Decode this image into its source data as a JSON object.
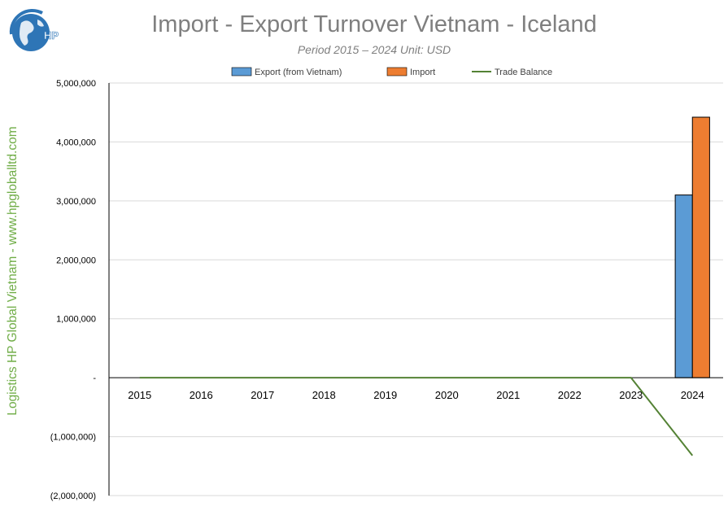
{
  "title": "Import - Export Turnover Vietnam - Iceland",
  "subtitle": "Period 2015 – 2024  Unit: USD",
  "side_text": "Logistics HP Global Vietnam - www.hpgloballtd.com",
  "logo": {
    "text": "HP",
    "icon": "globe-logo-icon"
  },
  "colors": {
    "export": "#5b9bd5",
    "import": "#ed7d31",
    "balance": "#548235",
    "grid": "#d9d9d9"
  },
  "chart_data": {
    "type": "bar",
    "categories": [
      "2015",
      "2016",
      "2017",
      "2018",
      "2019",
      "2020",
      "2021",
      "2022",
      "2023",
      "2024"
    ],
    "series": [
      {
        "name": "Export (from Vietnam)",
        "type": "bar",
        "values": [
          0,
          0,
          0,
          0,
          0,
          0,
          0,
          0,
          0,
          3100000
        ]
      },
      {
        "name": "Import",
        "type": "bar",
        "values": [
          0,
          0,
          0,
          0,
          0,
          0,
          0,
          0,
          0,
          4420000
        ]
      },
      {
        "name": "Trade Balance",
        "type": "line",
        "values": [
          0,
          0,
          0,
          0,
          0,
          0,
          0,
          0,
          0,
          -1320000
        ]
      }
    ],
    "ylim": [
      -2000000,
      5000000
    ],
    "yticks": [
      5000000,
      4000000,
      3000000,
      2000000,
      1000000,
      0,
      -1000000,
      -2000000
    ],
    "ytick_labels": [
      "5,000,000",
      "4,000,000",
      "3,000,000",
      "2,000,000",
      "1,000,000",
      "-",
      "(1,000,000)",
      "(2,000,000)"
    ],
    "grid": true,
    "legend_position": "top"
  }
}
